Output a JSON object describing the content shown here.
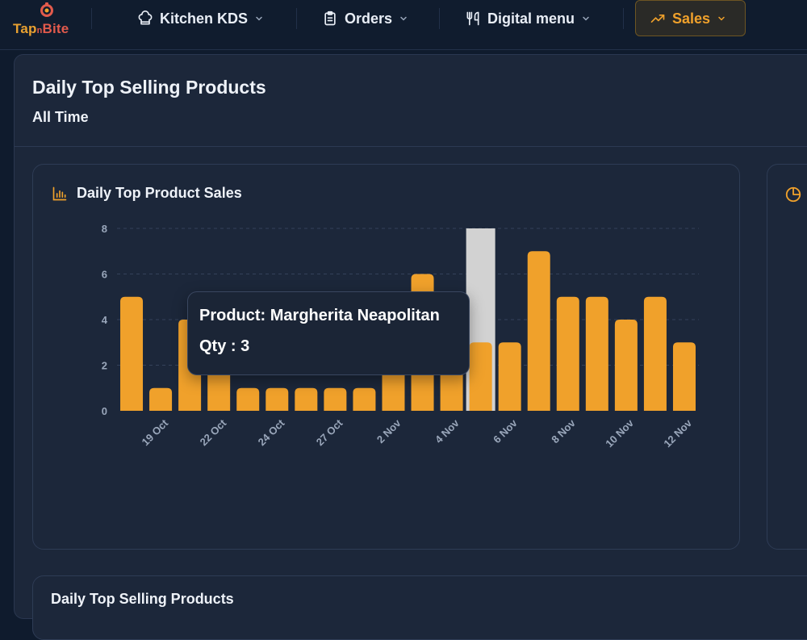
{
  "app": {
    "brand_part1": "Tap",
    "brand_part2": "n",
    "brand_part3": "Bite"
  },
  "nav": {
    "items": [
      {
        "label": "Kitchen KDS",
        "icon": "chef-hat-icon"
      },
      {
        "label": "Orders",
        "icon": "clipboard-icon"
      },
      {
        "label": "Digital menu",
        "icon": "utensils-icon"
      },
      {
        "label": "Sales",
        "icon": "trending-up-icon",
        "active": true
      }
    ]
  },
  "page": {
    "title": "Daily Top Selling Products",
    "subtitle": "All Time",
    "chart_card_title": "Daily Top Product Sales",
    "bottom_card_title": "Daily Top Selling Products"
  },
  "tooltip": {
    "product_line": "Product: Margherita Neapolitan",
    "qty_line": "Qty : 3"
  },
  "colors": {
    "accent": "#f0a12b",
    "bar": "#f0a12b",
    "hover_band": "#d2d2d2",
    "background": "#1c273a",
    "topbar": "#101c2e"
  },
  "chart_data": {
    "type": "bar",
    "ylim": [
      0,
      8
    ],
    "yticks": [
      0,
      2,
      4,
      6,
      8
    ],
    "values": [
      5,
      1,
      4,
      4,
      1,
      1,
      1,
      1,
      1,
      4,
      6,
      4,
      3,
      3,
      7,
      5,
      5,
      4,
      5,
      3
    ],
    "xtick_labels": [
      {
        "index": 1,
        "label": "19 Oct"
      },
      {
        "index": 3,
        "label": "22 Oct"
      },
      {
        "index": 5,
        "label": "24 Oct"
      },
      {
        "index": 7,
        "label": "27 Oct"
      },
      {
        "index": 9,
        "label": "2 Nov"
      },
      {
        "index": 11,
        "label": "4 Nov"
      },
      {
        "index": 13,
        "label": "6 Nov"
      },
      {
        "index": 15,
        "label": "8 Nov"
      },
      {
        "index": 17,
        "label": "10 Nov"
      },
      {
        "index": 19,
        "label": "12 Nov"
      }
    ],
    "highlight_index": 12,
    "grid": true
  }
}
